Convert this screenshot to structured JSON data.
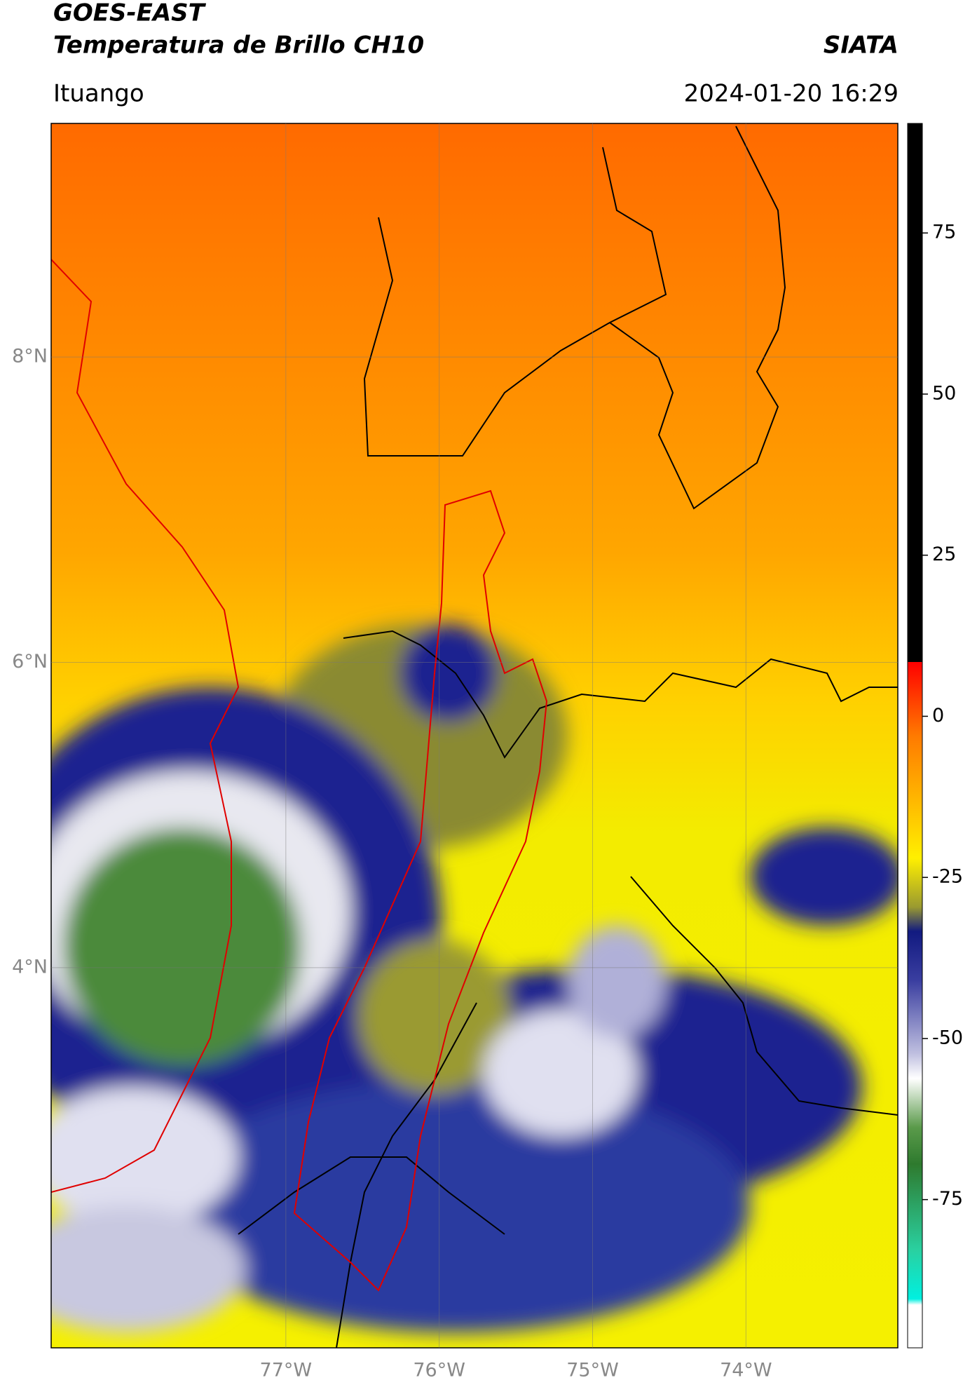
{
  "header": {
    "title": "GOES-EAST",
    "subtitle": "Temperatura de Brillo CH10",
    "source": "SIATA",
    "region": "Ituango",
    "timestamp": "2024-01-20 16:29"
  },
  "map": {
    "xlim": [
      -78.53,
      -73.01
    ],
    "ylim": [
      1.51,
      9.53
    ],
    "xticks": [
      {
        "value": -77,
        "label": "77°W"
      },
      {
        "value": -76,
        "label": "76°W"
      },
      {
        "value": -75,
        "label": "75°W"
      },
      {
        "value": -74,
        "label": "74°W"
      }
    ],
    "yticks": [
      {
        "value": 8,
        "label": "8°N"
      },
      {
        "value": 6,
        "label": "6°N"
      },
      {
        "value": 4,
        "label": "4°N"
      }
    ],
    "grid": true
  },
  "colorbar": {
    "lim": [
      -98,
      92
    ],
    "ticks": [
      75,
      50,
      25,
      0,
      -25,
      -50,
      -75
    ]
  }
}
